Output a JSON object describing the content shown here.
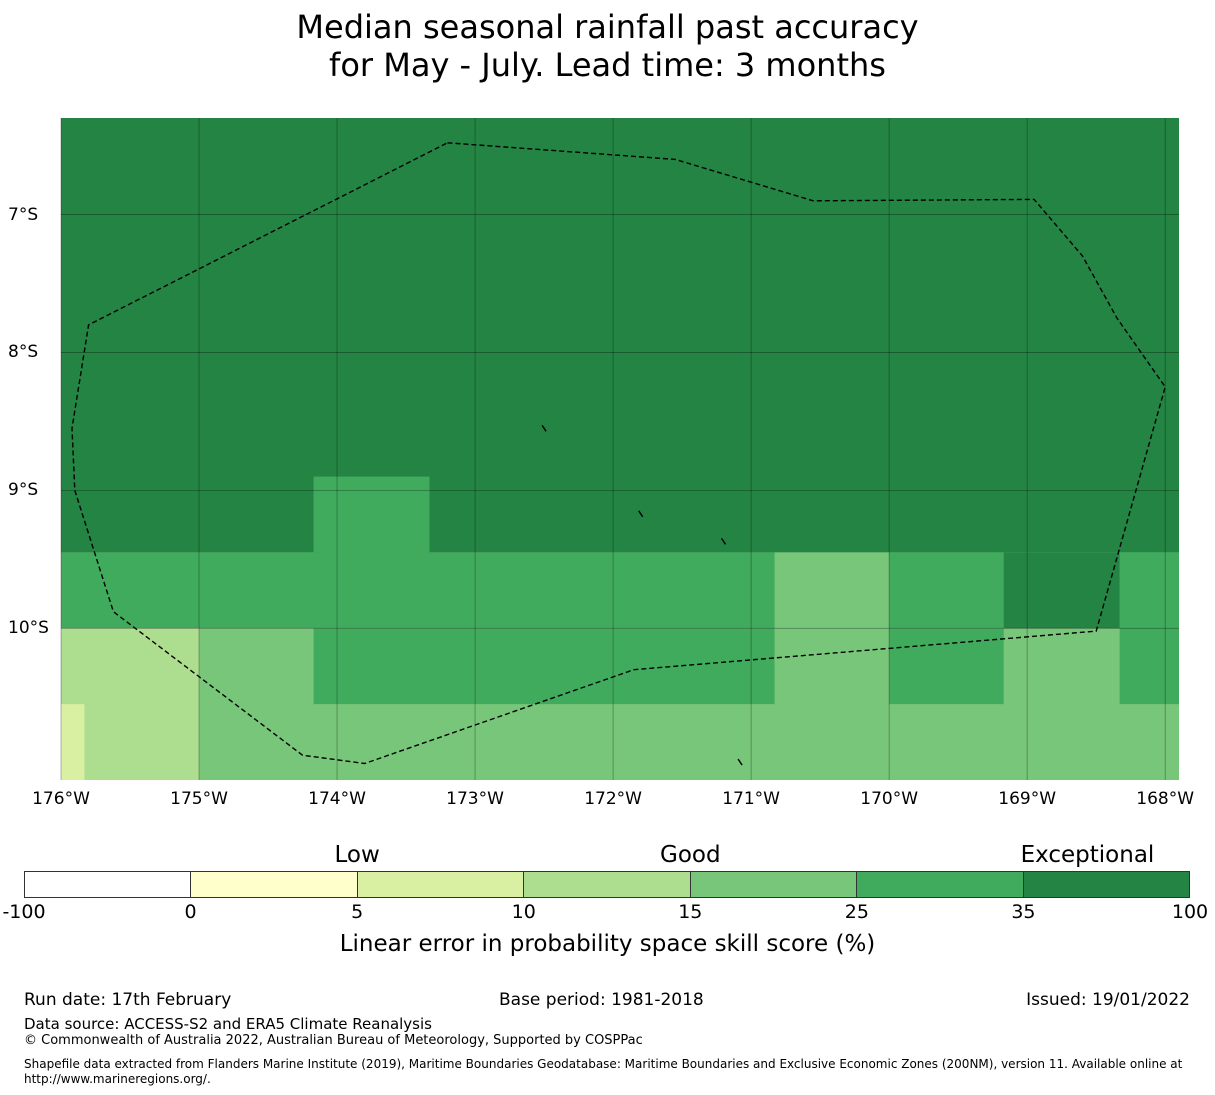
{
  "title": {
    "line1": "Median seasonal rainfall past accuracy",
    "line2": "for May - July. Lead time: 3 months"
  },
  "map": {
    "lon_range": [
      -176,
      -167.9
    ],
    "lat_range": [
      -11.1,
      -6.3
    ],
    "x_ticks": [
      {
        "lon": -176,
        "label": "176°W"
      },
      {
        "lon": -175,
        "label": "175°W"
      },
      {
        "lon": -174,
        "label": "174°W"
      },
      {
        "lon": -173,
        "label": "173°W"
      },
      {
        "lon": -172,
        "label": "172°W"
      },
      {
        "lon": -171,
        "label": "171°W"
      },
      {
        "lon": -170,
        "label": "170°W"
      },
      {
        "lon": -169,
        "label": "169°W"
      },
      {
        "lon": -168,
        "label": "168°W"
      }
    ],
    "y_ticks": [
      {
        "lat": -7,
        "label": "7°S"
      },
      {
        "lat": -8,
        "label": "8°S"
      },
      {
        "lat": -9,
        "label": "9°S"
      },
      {
        "lat": -10,
        "label": "10°S"
      }
    ],
    "skill_cells": [
      {
        "lon": [
          -176,
          -167.9
        ],
        "lat": [
          -9.45,
          -6.3
        ],
        "class": 6
      },
      {
        "lon": [
          -174.17,
          -173.33
        ],
        "lat": [
          -9.45,
          -8.9
        ],
        "class": 5
      },
      {
        "lon": [
          -176,
          -167.9
        ],
        "lat": [
          -10.0,
          -9.45
        ],
        "class": 5
      },
      {
        "lon": [
          -170.83,
          -170.0
        ],
        "lat": [
          -10.0,
          -9.45
        ],
        "class": 4
      },
      {
        "lon": [
          -169.17,
          -168.33
        ],
        "lat": [
          -10.0,
          -9.45
        ],
        "class": 6
      },
      {
        "lon": [
          -176,
          -175.0
        ],
        "lat": [
          -11.1,
          -10.0
        ],
        "class": 3
      },
      {
        "lon": [
          -176,
          -175.83
        ],
        "lat": [
          -11.1,
          -10.55
        ],
        "class": 2
      },
      {
        "lon": [
          -175.0,
          -167.9
        ],
        "lat": [
          -11.1,
          -10.0
        ],
        "class": 4
      },
      {
        "lon": [
          -174.17,
          -170.83
        ],
        "lat": [
          -10.55,
          -10.0
        ],
        "class": 5
      },
      {
        "lon": [
          -170.0,
          -169.17
        ],
        "lat": [
          -10.55,
          -10.0
        ],
        "class": 5
      },
      {
        "lon": [
          -168.33,
          -167.9
        ],
        "lat": [
          -10.55,
          -9.45
        ],
        "class": 5
      }
    ],
    "eez_boundary": [
      [
        -173.2,
        -6.48
      ],
      [
        -171.55,
        -6.6
      ],
      [
        -170.55,
        -6.9
      ],
      [
        -168.95,
        -6.89
      ],
      [
        -168.6,
        -7.3
      ],
      [
        -168.35,
        -7.75
      ],
      [
        -168.0,
        -8.25
      ],
      [
        -168.5,
        -10.02
      ],
      [
        -171.85,
        -10.3
      ],
      [
        -173.8,
        -10.98
      ],
      [
        -174.25,
        -10.92
      ],
      [
        -175.62,
        -9.88
      ],
      [
        -175.9,
        -9.0
      ],
      [
        -175.92,
        -8.55
      ],
      [
        -175.8,
        -7.8
      ],
      [
        -173.2,
        -6.48
      ]
    ],
    "islets": [
      {
        "lon": -172.5,
        "lat": -8.55
      },
      {
        "lon": -171.8,
        "lat": -9.17
      },
      {
        "lon": -171.2,
        "lat": -9.37
      },
      {
        "lon": -171.08,
        "lat": -10.97
      }
    ]
  },
  "legend": {
    "categories": [
      {
        "label": "Low",
        "value": 5
      },
      {
        "label": "Good",
        "value": 15
      },
      {
        "label": "Exceptional",
        "value": 60
      }
    ],
    "bins": [
      {
        "from": -100,
        "to": 0,
        "color": "#ffffff"
      },
      {
        "from": 0,
        "to": 5,
        "color": "#ffffcc"
      },
      {
        "from": 5,
        "to": 10,
        "color": "#d9f0a3"
      },
      {
        "from": 10,
        "to": 15,
        "color": "#addd8e"
      },
      {
        "from": 15,
        "to": 25,
        "color": "#78c679"
      },
      {
        "from": 25,
        "to": 35,
        "color": "#41ab5d"
      },
      {
        "from": 35,
        "to": 100,
        "color": "#238443"
      }
    ],
    "ticks": [
      "-100",
      "0",
      "5",
      "10",
      "15",
      "25",
      "35",
      "100"
    ],
    "label": "Linear error in probability space skill score (%)"
  },
  "footer": {
    "run_date": "Run date: 17th February",
    "base_period": "Base period: 1981-2018",
    "issued": "Issued: 19/01/2022",
    "data_source": "Data source: ACCESS-S2 and ERA5 Climate Reanalysis",
    "copyright": "© Commonwealth of Australia 2022, Australian Bureau of Meteorology, Supported by COSPPac",
    "shapefile": "Shapefile data extracted from Flanders Marine Institute (2019), Maritime Boundaries Geodatabase: Maritime Boundaries and Exclusive Economic Zones (200NM), version 11. Available online at http://www.marineregions.org/."
  }
}
